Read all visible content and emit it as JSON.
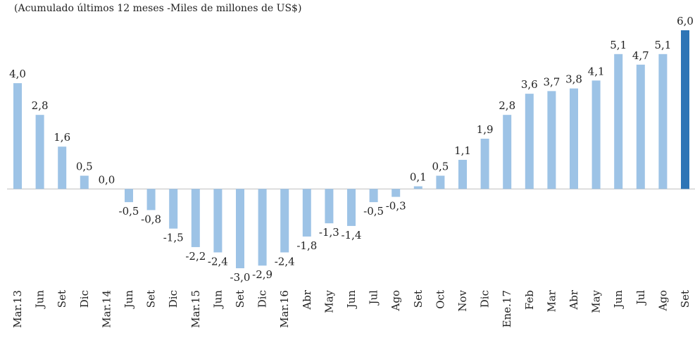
{
  "chart_data": {
    "type": "bar",
    "subtitle": "(Acumulado últimos 12 meses -Miles de millones de US$)",
    "categories": [
      "Mar.13",
      "Jun",
      "Set",
      "Dic",
      "Mar.14",
      "Jun",
      "Set",
      "Dic",
      "Mar.15",
      "Jun",
      "Set",
      "Dic",
      "Mar.16",
      "Abr",
      "May",
      "Jun",
      "Jul",
      "Ago",
      "Set",
      "Oct",
      "Nov",
      "Dic",
      "Ene.17",
      "Feb",
      "Mar",
      "Abr",
      "May",
      "Jun",
      "Jul",
      "Ago",
      "Set"
    ],
    "values": [
      4.0,
      2.8,
      1.6,
      0.5,
      0.0,
      -0.5,
      -0.8,
      -1.5,
      -2.2,
      -2.4,
      -3.0,
      -2.9,
      -2.4,
      -1.8,
      -1.3,
      -1.4,
      -0.5,
      -0.3,
      0.1,
      0.5,
      1.1,
      1.9,
      2.8,
      3.6,
      3.7,
      3.8,
      4.1,
      5.1,
      4.7,
      5.1,
      6.0
    ],
    "value_labels": [
      "4,0",
      "2,8",
      "1,6",
      "0,5",
      "0,0",
      "-0,5",
      "-0,8",
      "-1,5",
      "-2,2",
      "-2,4",
      "-3,0",
      "-2,9",
      "-2,4",
      "-1,8",
      "-1,3",
      "-1,4",
      "-0,5",
      "-0,3",
      "0,1",
      "0,5",
      "1,1",
      "1,9",
      "2,8",
      "3,6",
      "3,7",
      "3,8",
      "4,1",
      "5,1",
      "4,7",
      "5,1",
      "6,0"
    ],
    "colors": [
      "#9dc3e6",
      "#9dc3e6",
      "#9dc3e6",
      "#9dc3e6",
      "#9dc3e6",
      "#9dc3e6",
      "#9dc3e6",
      "#9dc3e6",
      "#9dc3e6",
      "#9dc3e6",
      "#9dc3e6",
      "#9dc3e6",
      "#9dc3e6",
      "#9dc3e6",
      "#9dc3e6",
      "#9dc3e6",
      "#9dc3e6",
      "#9dc3e6",
      "#9dc3e6",
      "#9dc3e6",
      "#9dc3e6",
      "#9dc3e6",
      "#9dc3e6",
      "#9dc3e6",
      "#9dc3e6",
      "#9dc3e6",
      "#9dc3e6",
      "#9dc3e6",
      "#9dc3e6",
      "#9dc3e6",
      "#2e75b6"
    ]
  }
}
